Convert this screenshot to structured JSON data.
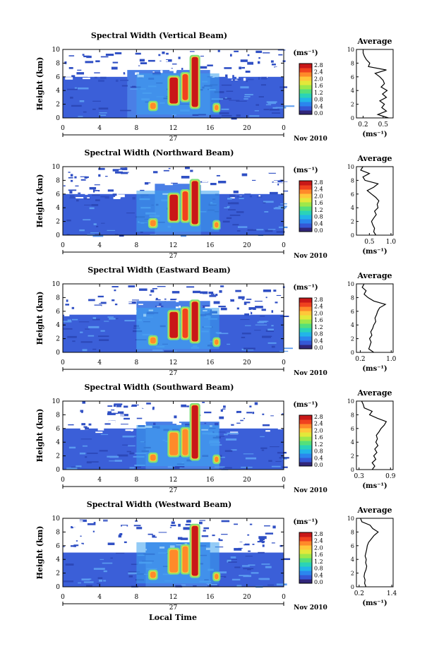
{
  "figure": {
    "xlabel": "Local Time",
    "date_label": "Nov 2010",
    "day_label": "27",
    "height_label": "Height (km)",
    "unit_label": "(ms⁻¹)",
    "average_title": "Average",
    "average_xlabel": "(ms⁻¹)"
  },
  "colorbar": {
    "ticks": [
      "2.8",
      "2.4",
      "2.0",
      "1.6",
      "1.2",
      "0.8",
      "0.4",
      "0.0"
    ],
    "colors": [
      "#31267a",
      "#3558d6",
      "#2b86ee",
      "#22b5e8",
      "#2ad3b8",
      "#55e07a",
      "#9ee84a",
      "#e3e83a",
      "#ffc73a",
      "#ff8a2a",
      "#f0421f",
      "#c91818"
    ]
  },
  "chart_data": [
    {
      "type": "heatmap",
      "title": "Spectral Width (Vertical Beam)",
      "x_ticks": [
        "0",
        "4",
        "8",
        "12",
        "16",
        "20",
        "0"
      ],
      "y_ticks": [
        "0",
        "2",
        "4",
        "6",
        "8",
        "10"
      ],
      "xlim": [
        0,
        24
      ],
      "ylim": [
        0,
        10
      ],
      "colorbar_range": [
        0.0,
        3.0
      ],
      "tops": [
        {
          "x0": 0,
          "x1": 24,
          "top": 6.0
        },
        {
          "x0": 7,
          "x1": 16,
          "top": 7.0
        }
      ],
      "cells": [
        {
          "x0": 8.0,
          "x1": 17.0,
          "y0": 0.5,
          "y1": 6.5,
          "value": 0.8
        },
        {
          "x0": 9.5,
          "x1": 10.1,
          "y0": 1.2,
          "y1": 2.3,
          "value": 2.4
        },
        {
          "x0": 11.6,
          "x1": 12.5,
          "y0": 2.0,
          "y1": 6.0,
          "value": 2.8
        },
        {
          "x0": 13.0,
          "x1": 13.6,
          "y0": 2.5,
          "y1": 6.5,
          "value": 2.6
        },
        {
          "x0": 14.0,
          "x1": 14.7,
          "y0": 1.5,
          "y1": 9.0,
          "value": 2.9
        },
        {
          "x0": 16.5,
          "x1": 16.9,
          "y0": 1.0,
          "y1": 2.0,
          "value": 2.4
        }
      ],
      "profile": {
        "title": "Average",
        "x_ticks": [
          "0.2",
          "0.5"
        ],
        "xlim": [
          0.1,
          0.65
        ],
        "ylim": [
          0,
          10
        ],
        "heights": [
          0,
          0.5,
          1,
          1.5,
          2,
          2.5,
          3,
          3.5,
          4,
          4.5,
          5,
          5.5,
          6,
          6.5,
          7,
          7.5,
          8,
          8.5,
          9,
          9.5,
          10
        ],
        "values": [
          0.58,
          0.42,
          0.55,
          0.48,
          0.52,
          0.45,
          0.55,
          0.49,
          0.56,
          0.47,
          0.52,
          0.5,
          0.45,
          0.38,
          0.55,
          0.28,
          0.3,
          0.25,
          0.22,
          0.2,
          0.2
        ]
      }
    },
    {
      "type": "heatmap",
      "title": "Spectral Width (Northward Beam)",
      "x_ticks": [
        "0",
        "4",
        "8",
        "12",
        "16",
        "20",
        "0"
      ],
      "y_ticks": [
        "0",
        "2",
        "4",
        "6",
        "8",
        "10"
      ],
      "xlim": [
        0,
        24
      ],
      "ylim": [
        0,
        10
      ],
      "colorbar_range": [
        0.0,
        3.0
      ],
      "tops": [
        {
          "x0": 0,
          "x1": 24,
          "top": 6.0
        },
        {
          "x0": 10,
          "x1": 15,
          "top": 7.5
        }
      ],
      "cells": [
        {
          "x0": 8.0,
          "x1": 17.0,
          "y0": 0.5,
          "y1": 6.5,
          "value": 0.8
        },
        {
          "x0": 9.5,
          "x1": 10.1,
          "y0": 1.2,
          "y1": 2.3,
          "value": 2.3
        },
        {
          "x0": 11.6,
          "x1": 12.5,
          "y0": 2.0,
          "y1": 6.0,
          "value": 2.8
        },
        {
          "x0": 13.0,
          "x1": 13.6,
          "y0": 2.0,
          "y1": 6.5,
          "value": 2.6
        },
        {
          "x0": 14.0,
          "x1": 14.7,
          "y0": 1.5,
          "y1": 8.0,
          "value": 2.9
        },
        {
          "x0": 16.5,
          "x1": 16.9,
          "y0": 1.0,
          "y1": 2.0,
          "value": 2.3
        }
      ],
      "profile": {
        "title": "Average",
        "x_ticks": [
          "0.5",
          "1.0"
        ],
        "xlim": [
          0.2,
          1.05
        ],
        "ylim": [
          0,
          10
        ],
        "heights": [
          0,
          0.5,
          1,
          1.5,
          2,
          2.5,
          3,
          3.5,
          4,
          4.5,
          5,
          5.5,
          6,
          6.5,
          7,
          7.5,
          8,
          8.5,
          9,
          9.5,
          10
        ],
        "values": [
          0.65,
          0.6,
          0.62,
          0.58,
          0.55,
          0.6,
          0.66,
          0.62,
          0.7,
          0.68,
          0.72,
          0.65,
          0.55,
          0.45,
          0.6,
          0.7,
          0.4,
          0.35,
          0.5,
          0.3,
          0.35
        ]
      }
    },
    {
      "type": "heatmap",
      "title": "Spectral Width (Eastward Beam)",
      "x_ticks": [
        "0",
        "4",
        "8",
        "12",
        "16",
        "20",
        "0"
      ],
      "y_ticks": [
        "0",
        "2",
        "4",
        "6",
        "8",
        "10"
      ],
      "xlim": [
        0,
        24
      ],
      "ylim": [
        0,
        10
      ],
      "colorbar_range": [
        0.0,
        3.0
      ],
      "tops": [
        {
          "x0": 0,
          "x1": 24,
          "top": 5.5
        },
        {
          "x0": 8,
          "x1": 16,
          "top": 7.5
        }
      ],
      "cells": [
        {
          "x0": 8.0,
          "x1": 17.0,
          "y0": 0.5,
          "y1": 6.5,
          "value": 0.8
        },
        {
          "x0": 9.5,
          "x1": 10.1,
          "y0": 1.2,
          "y1": 2.3,
          "value": 2.3
        },
        {
          "x0": 11.6,
          "x1": 12.5,
          "y0": 2.0,
          "y1": 6.0,
          "value": 2.8
        },
        {
          "x0": 13.0,
          "x1": 13.6,
          "y0": 2.0,
          "y1": 6.5,
          "value": 2.6
        },
        {
          "x0": 14.0,
          "x1": 14.7,
          "y0": 1.5,
          "y1": 7.5,
          "value": 2.9
        },
        {
          "x0": 16.5,
          "x1": 16.9,
          "y0": 1.0,
          "y1": 2.0,
          "value": 2.3
        }
      ],
      "profile": {
        "title": "Average",
        "x_ticks": [
          "0.2",
          "1.0"
        ],
        "xlim": [
          0.1,
          1.05
        ],
        "ylim": [
          0,
          10
        ],
        "heights": [
          0,
          0.5,
          1,
          1.5,
          2,
          2.5,
          3,
          3.5,
          4,
          4.5,
          5,
          5.5,
          6,
          6.5,
          7,
          7.5,
          8,
          8.5,
          9,
          9.5,
          10
        ],
        "values": [
          0.55,
          0.42,
          0.45,
          0.48,
          0.44,
          0.5,
          0.47,
          0.52,
          0.55,
          0.6,
          0.58,
          0.62,
          0.65,
          0.7,
          0.85,
          0.55,
          0.4,
          0.3,
          0.35,
          0.25,
          0.3
        ]
      }
    },
    {
      "type": "heatmap",
      "title": "Spectral Width (Southward Beam)",
      "x_ticks": [
        "0",
        "4",
        "8",
        "12",
        "16",
        "20",
        "0"
      ],
      "y_ticks": [
        "0",
        "2",
        "4",
        "6",
        "8",
        "10"
      ],
      "xlim": [
        0,
        24
      ],
      "ylim": [
        0,
        10
      ],
      "colorbar_range": [
        0.0,
        3.0
      ],
      "tops": [
        {
          "x0": 0,
          "x1": 24,
          "top": 6.0
        },
        {
          "x0": 9,
          "x1": 17,
          "top": 7.0
        }
      ],
      "cells": [
        {
          "x0": 8.0,
          "x1": 17.0,
          "y0": 0.5,
          "y1": 6.5,
          "value": 0.8
        },
        {
          "x0": 9.5,
          "x1": 10.1,
          "y0": 1.2,
          "y1": 2.3,
          "value": 2.3
        },
        {
          "x0": 11.6,
          "x1": 12.5,
          "y0": 2.0,
          "y1": 5.5,
          "value": 2.4
        },
        {
          "x0": 13.0,
          "x1": 13.6,
          "y0": 2.0,
          "y1": 6.0,
          "value": 2.4
        },
        {
          "x0": 14.0,
          "x1": 14.7,
          "y0": 1.5,
          "y1": 9.5,
          "value": 2.9
        },
        {
          "x0": 16.5,
          "x1": 16.9,
          "y0": 1.0,
          "y1": 2.0,
          "value": 2.3
        }
      ],
      "profile": {
        "title": "Average",
        "x_ticks": [
          "0.3",
          "0.9"
        ],
        "xlim": [
          0.25,
          0.95
        ],
        "ylim": [
          0,
          10
        ],
        "heights": [
          0,
          0.5,
          1,
          1.5,
          2,
          2.5,
          3,
          3.5,
          4,
          4.5,
          5,
          5.5,
          6,
          6.5,
          7,
          7.5,
          8,
          8.5,
          9,
          9.5,
          10
        ],
        "values": [
          0.55,
          0.6,
          0.55,
          0.62,
          0.58,
          0.64,
          0.6,
          0.66,
          0.62,
          0.65,
          0.63,
          0.68,
          0.72,
          0.78,
          0.82,
          0.65,
          0.5,
          0.55,
          0.4,
          0.38,
          0.35
        ]
      }
    },
    {
      "type": "heatmap",
      "title": "Spectral Width (Westward Beam)",
      "x_ticks": [
        "0",
        "4",
        "8",
        "12",
        "16",
        "20",
        "0"
      ],
      "y_ticks": [
        "0",
        "2",
        "4",
        "6",
        "8",
        "10"
      ],
      "xlim": [
        0,
        24
      ],
      "ylim": [
        0,
        10
      ],
      "colorbar_range": [
        0.0,
        3.0
      ],
      "tops": [
        {
          "x0": 0,
          "x1": 24,
          "top": 5.0
        },
        {
          "x0": 9,
          "x1": 16,
          "top": 6.5
        }
      ],
      "cells": [
        {
          "x0": 8.0,
          "x1": 17.0,
          "y0": 0.5,
          "y1": 6.5,
          "value": 0.8
        },
        {
          "x0": 9.5,
          "x1": 10.1,
          "y0": 1.2,
          "y1": 2.3,
          "value": 2.3
        },
        {
          "x0": 11.6,
          "x1": 12.5,
          "y0": 2.0,
          "y1": 5.5,
          "value": 2.4
        },
        {
          "x0": 13.0,
          "x1": 13.6,
          "y0": 2.0,
          "y1": 6.0,
          "value": 2.4
        },
        {
          "x0": 14.0,
          "x1": 14.7,
          "y0": 1.5,
          "y1": 9.0,
          "value": 2.9
        },
        {
          "x0": 16.5,
          "x1": 16.9,
          "y0": 1.0,
          "y1": 2.0,
          "value": 2.3
        }
      ],
      "profile": {
        "title": "Average",
        "x_ticks": [
          "0.2",
          "1.4"
        ],
        "xlim": [
          0.1,
          1.45
        ],
        "ylim": [
          0,
          10
        ],
        "heights": [
          0,
          0.5,
          1,
          1.5,
          2,
          2.5,
          3,
          3.5,
          4,
          4.5,
          5,
          5.5,
          6,
          6.5,
          7,
          7.5,
          8,
          8.5,
          9,
          9.5,
          10
        ],
        "values": [
          0.45,
          0.4,
          0.42,
          0.38,
          0.4,
          0.45,
          0.48,
          0.44,
          0.46,
          0.42,
          0.45,
          0.48,
          0.5,
          0.55,
          0.65,
          0.75,
          0.9,
          0.7,
          0.6,
          0.3,
          0.25
        ]
      }
    }
  ]
}
